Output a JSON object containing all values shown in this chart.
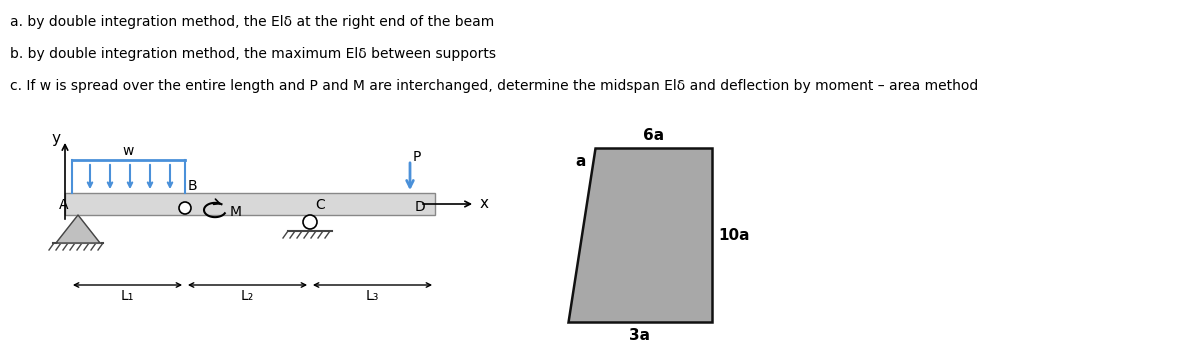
{
  "text_a": "a. by double integration method, the Elδ at the right end of the beam",
  "text_b": "b. by double integration method, the maximum Elδ between supports",
  "text_c": "c. If w is spread over the entire length and P and M are interchanged, determine the midspan Elδ and deflection by moment – area method",
  "beam_color": "#d8d8d8",
  "beam_outline": "#888888",
  "load_arrow_color": "#4a90d9",
  "trap_fill": "#a8a8a8",
  "trap_outline": "#111111",
  "label_6a": "6a",
  "label_3a": "3a",
  "label_10a": "10a",
  "label_a": "a",
  "label_w": "w",
  "label_B": "B",
  "label_M": "M",
  "label_C": "C",
  "label_D": "D",
  "label_P": "P",
  "label_x": "x",
  "label_y": "y",
  "label_A": "A",
  "label_L1": "L₁",
  "label_L2": "L₂",
  "label_L3": "L₃"
}
